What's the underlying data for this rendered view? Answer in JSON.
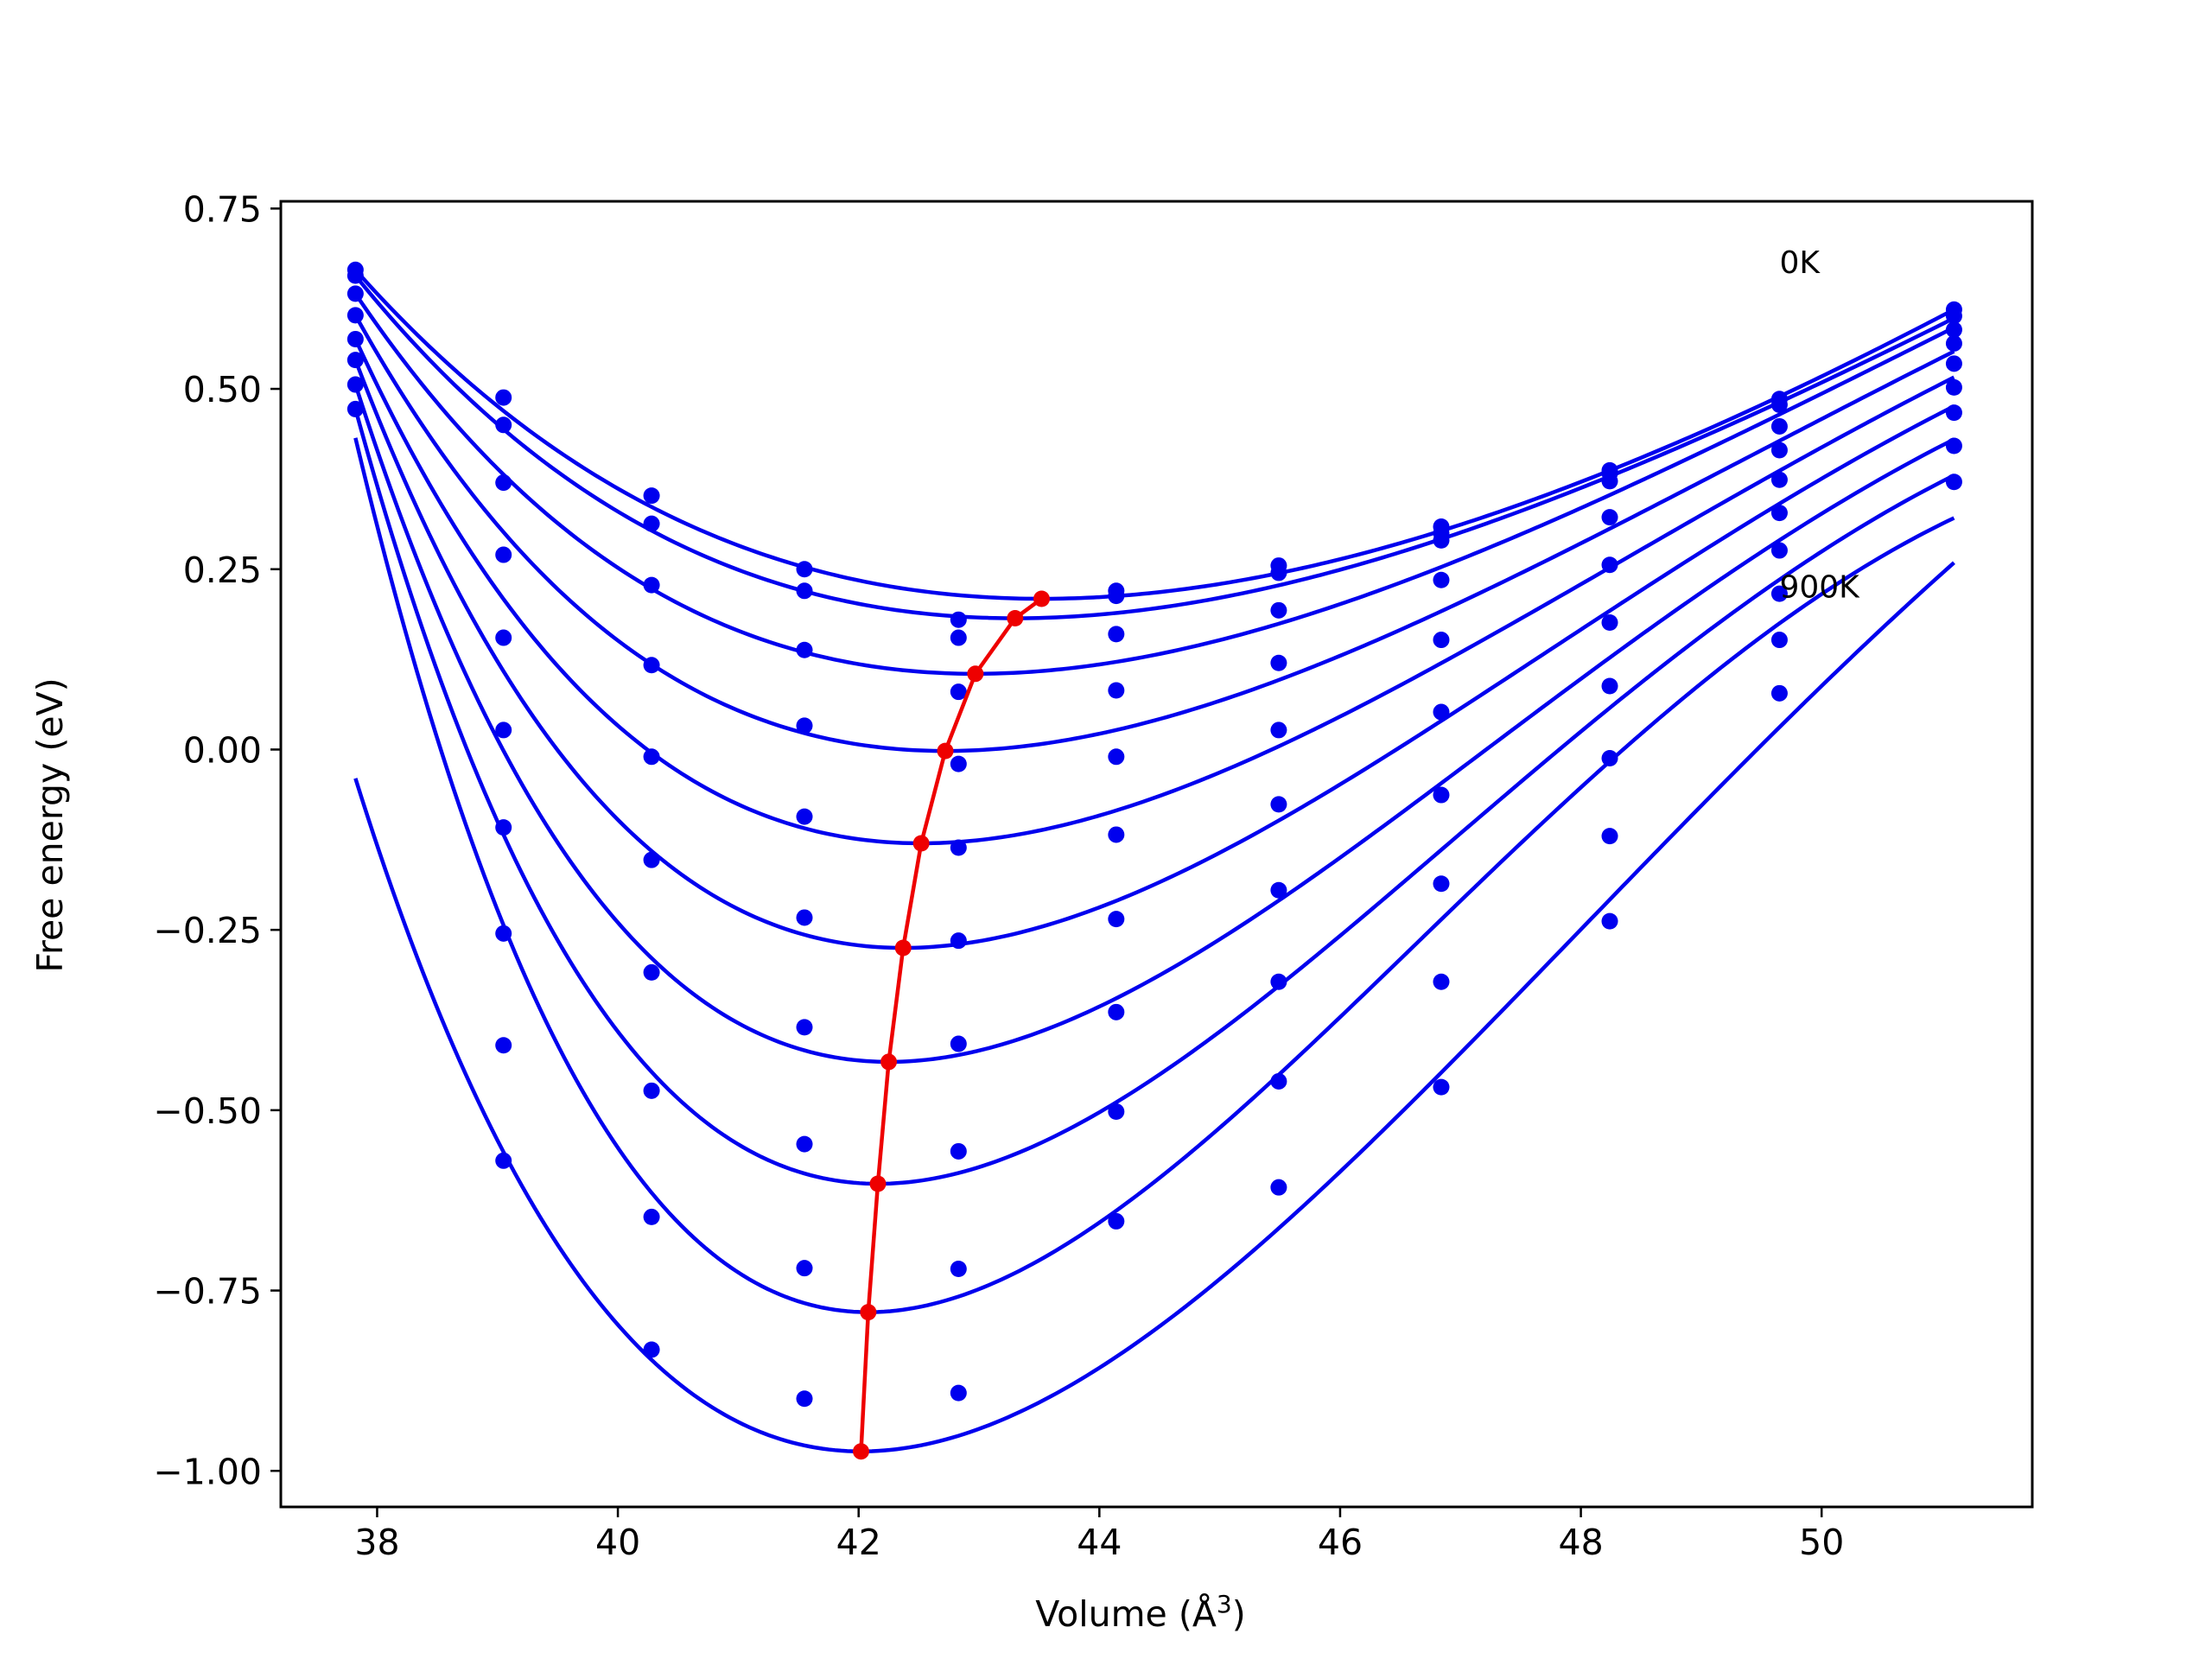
{
  "chart_data": {
    "type": "line",
    "title": "",
    "xlabel": "Volume (Å",
    "xlabel_sup": "3",
    "xlabel_suffix": ")",
    "ylabel": "Free energy (eV)",
    "xlim": [
      37.2,
      51.75
    ],
    "ylim": [
      -1.05,
      0.76
    ],
    "x_ticks": [
      38,
      40,
      42,
      44,
      46,
      48,
      50
    ],
    "y_ticks": [
      0.75,
      0.5,
      0.25,
      0.0,
      -0.25,
      -0.5,
      -0.75,
      -1.0
    ],
    "y_tick_labels": [
      "0.75",
      "0.50",
      "0.25",
      "0.00",
      "−0.25",
      "−0.50",
      "−0.75",
      "−1.00"
    ],
    "grid": false,
    "legend": "none",
    "colors": {
      "curves": "#0000ee",
      "minimum_line": "#ee0000",
      "frame": "#000000"
    },
    "annotations": [
      {
        "text": "0K",
        "x": 49.65,
        "y": 0.675
      },
      {
        "text": "900K",
        "x": 49.65,
        "y": 0.225
      }
    ],
    "volumes": [
      37.82,
      39.05,
      40.28,
      41.55,
      42.83,
      44.14,
      45.49,
      46.84,
      48.24,
      49.65,
      51.1
    ],
    "fit_range": [
      37.82,
      51.1
    ],
    "series": [
      {
        "points": [
          0.665,
          0.488,
          0.352,
          0.25,
          0.18,
          0.22,
          0.255,
          0.309,
          0.387,
          0.486,
          0.61
        ],
        "min_volume": 43.52,
        "min_energy": 0.209,
        "curve_end_energy": 0.61
      },
      {
        "points": [
          0.657,
          0.45,
          0.313,
          0.22,
          0.155,
          0.213,
          0.245,
          0.3,
          0.383,
          0.478,
          0.601
        ],
        "min_volume": 43.3,
        "min_energy": 0.182,
        "curve_end_energy": 0.598
      },
      {
        "points": [
          0.632,
          0.37,
          0.228,
          0.138,
          0.08,
          0.16,
          0.193,
          0.29,
          0.372,
          0.448,
          0.582
        ],
        "min_volume": 42.97,
        "min_energy": 0.105,
        "curve_end_energy": 0.585
      },
      {
        "points": [
          0.602,
          0.27,
          0.117,
          0.033,
          -0.02,
          0.082,
          0.12,
          0.235,
          0.322,
          0.415,
          0.563
        ],
        "min_volume": 42.72,
        "min_energy": -0.002,
        "curve_end_energy": 0.552
      },
      {
        "points": [
          0.569,
          0.155,
          -0.01,
          -0.093,
          -0.136,
          -0.01,
          0.027,
          0.152,
          0.256,
          0.374,
          0.535
        ],
        "min_volume": 42.52,
        "min_energy": -0.13,
        "curve_end_energy": 0.516
      },
      {
        "points": [
          0.54,
          0.027,
          -0.153,
          -0.233,
          -0.265,
          -0.118,
          -0.076,
          0.052,
          0.176,
          0.328,
          0.502
        ],
        "min_volume": 42.37,
        "min_energy": -0.275,
        "curve_end_energy": 0.476
      },
      {
        "points": [
          0.506,
          -0.108,
          -0.309,
          -0.385,
          -0.408,
          -0.235,
          -0.195,
          -0.063,
          0.088,
          0.276,
          0.467
        ],
        "min_volume": 42.25,
        "min_energy": -0.433,
        "curve_end_energy": 0.43
      },
      {
        "points": [
          0.472,
          -0.255,
          -0.473,
          -0.547,
          -0.557,
          -0.364,
          -0.322,
          -0.186,
          -0.012,
          0.216,
          0.421
        ],
        "min_volume": 42.16,
        "min_energy": -0.602,
        "curve_end_energy": 0.38
      },
      {
        "points": [
          null,
          -0.41,
          -0.648,
          -0.719,
          -0.72,
          -0.502,
          -0.46,
          -0.322,
          -0.12,
          0.152,
          0.371
        ],
        "min_volume": 42.08,
        "min_energy": -0.78,
        "curve_end_energy": 0.321
      },
      {
        "points": [
          null,
          -0.57,
          -0.832,
          -0.9,
          -0.892,
          -0.654,
          -0.607,
          -0.468,
          -0.238,
          0.078,
          null
        ],
        "min_volume": 42.02,
        "min_energy": -0.973,
        "curve_end_energy": 0.259
      }
    ]
  }
}
